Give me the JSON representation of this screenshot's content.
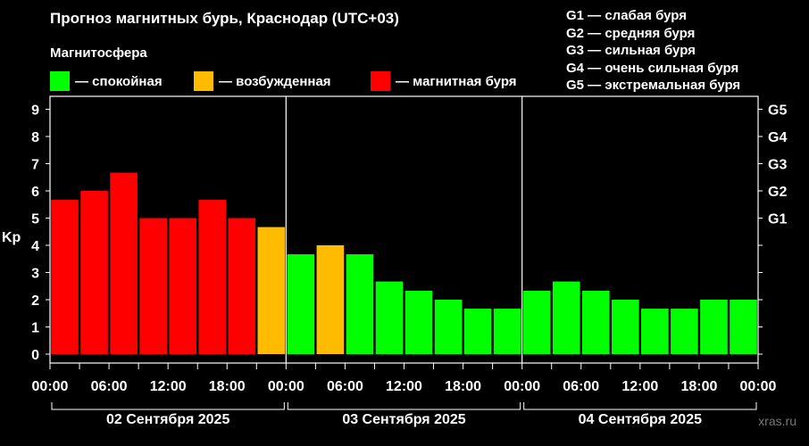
{
  "title": "Прогноз магнитных бурь, Краснодар (UTC+03)",
  "legend": {
    "title": "Магнитосфера",
    "items": [
      {
        "label": "— спокойная",
        "color": "#00ff00"
      },
      {
        "label": "— возбужденная",
        "color": "#ffbb00"
      },
      {
        "label": "— магнитная буря",
        "color": "#ff0000"
      }
    ]
  },
  "storm_legend": [
    "G1 — слабая буря",
    "G2 — средняя буря",
    "G3 — сильная буря",
    "G4 — очень сильная буря",
    "G5 — экстремальная буря"
  ],
  "watermark": "xras.ru",
  "chart_data": {
    "type": "bar",
    "ylabel": "Kp",
    "ylim": [
      0,
      9
    ],
    "yticks": [
      "0",
      "1",
      "2",
      "3",
      "4",
      "5",
      "6",
      "7",
      "8",
      "9"
    ],
    "right_ticks": [
      {
        "kp": 5,
        "label": "G1"
      },
      {
        "kp": 6,
        "label": "G2"
      },
      {
        "kp": 7,
        "label": "G3"
      },
      {
        "kp": 8,
        "label": "G4"
      },
      {
        "kp": 9,
        "label": "G5"
      }
    ],
    "xtick_labels": [
      "00:00",
      "06:00",
      "12:00",
      "18:00",
      "00:00",
      "06:00",
      "12:00",
      "18:00",
      "00:00",
      "06:00",
      "12:00",
      "18:00",
      "00:00"
    ],
    "days": [
      "02 Сентября 2025",
      "03 Сентября 2025",
      "04 Сентября 2025"
    ],
    "colors": {
      "quiet": "#00ff00",
      "active": "#ffbb00",
      "storm": "#ff0000"
    },
    "values": [
      5.67,
      6.0,
      6.67,
      5.0,
      5.0,
      5.67,
      5.0,
      4.67,
      3.67,
      4.0,
      3.67,
      2.67,
      2.33,
      2.0,
      1.67,
      1.67,
      2.33,
      2.67,
      2.33,
      2.0,
      1.67,
      1.67,
      2.0,
      2.0
    ],
    "grid": false,
    "legend_position": "top"
  }
}
